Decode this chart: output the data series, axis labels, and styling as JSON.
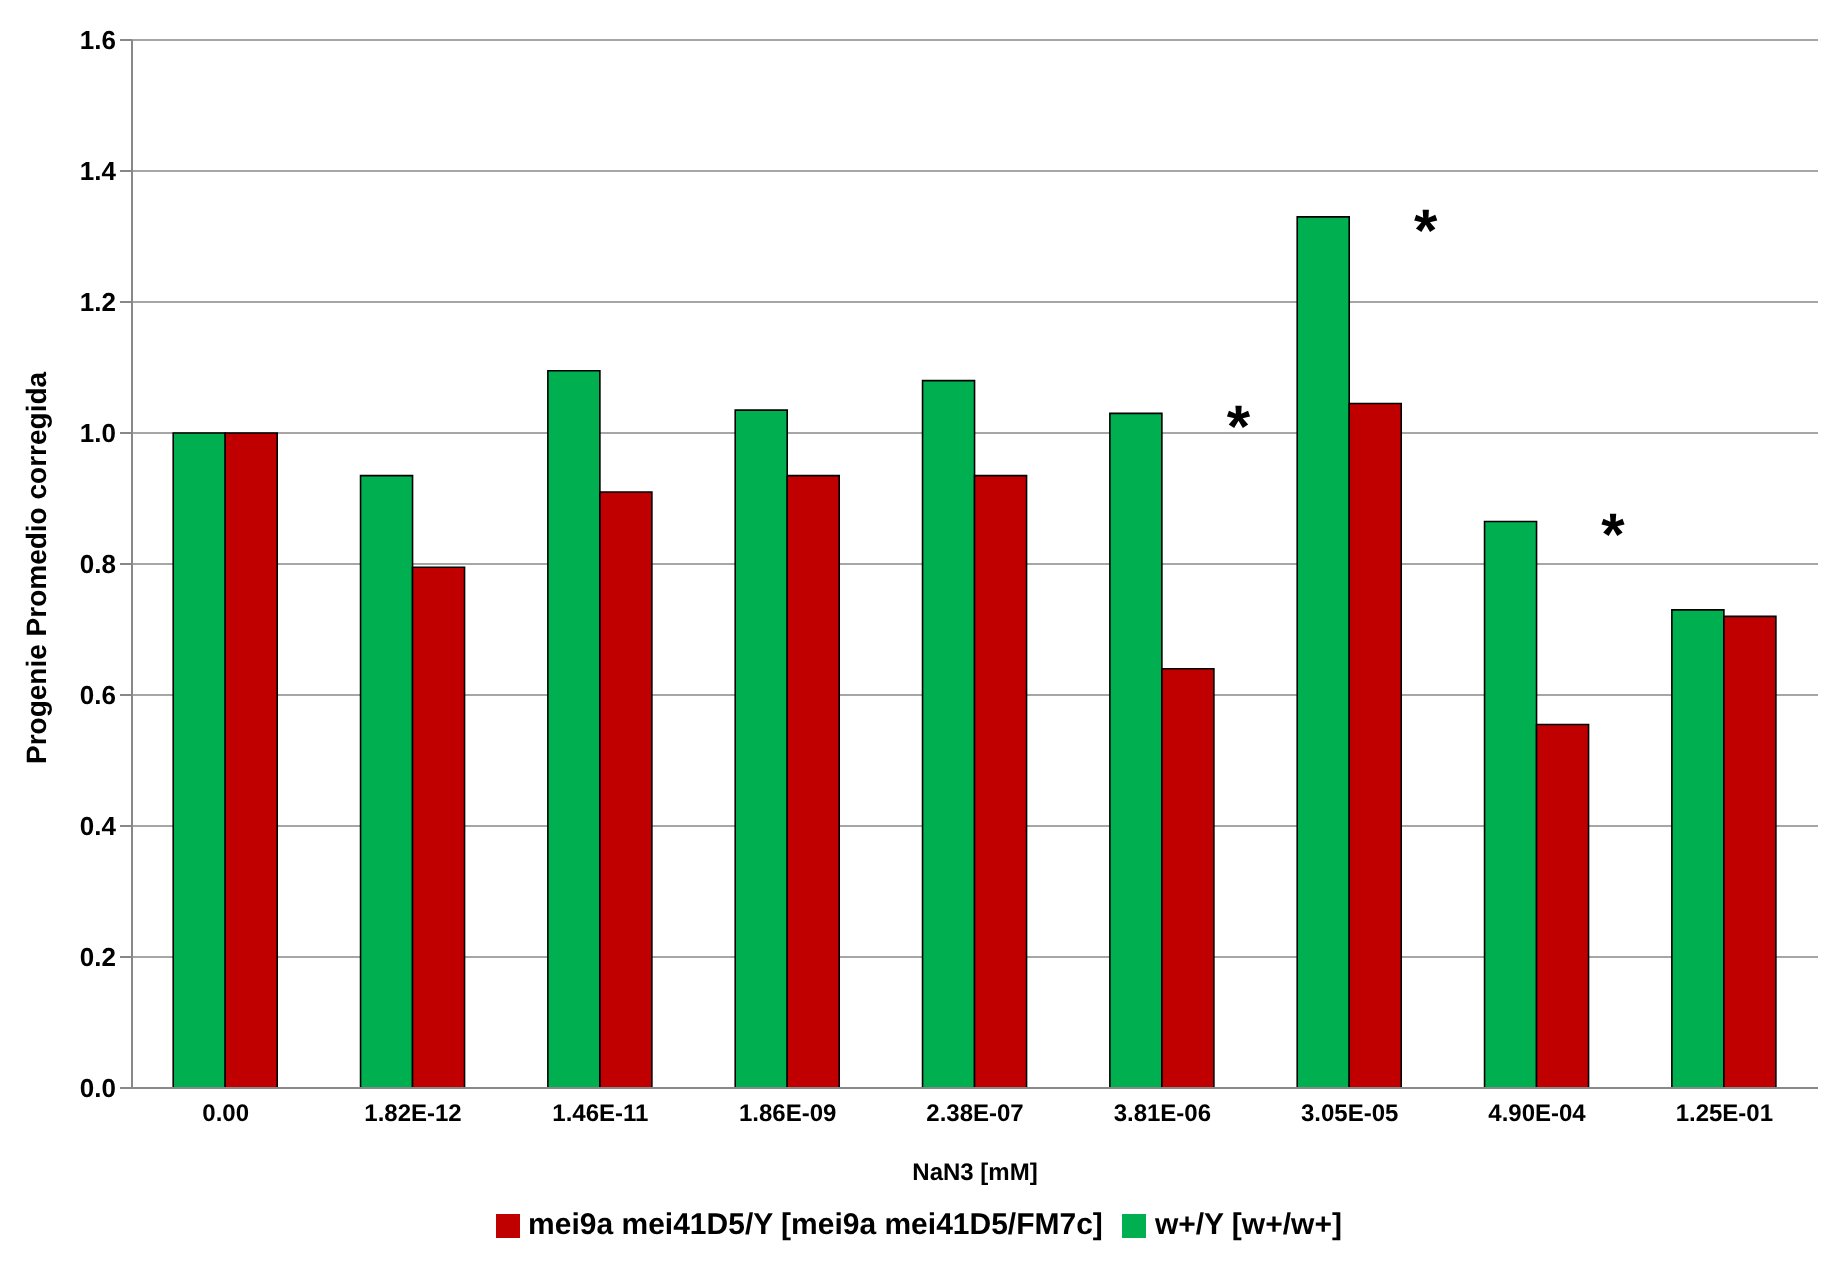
{
  "chart_data": {
    "type": "bar",
    "xlabel": "NaN3 [mM]",
    "ylabel": "Progenie Promedio corregida",
    "categories": [
      "0.00",
      "1.82E-12",
      "1.46E-11",
      "1.86E-09",
      "2.38E-07",
      "3.81E-06",
      "3.05E-05",
      "4.90E-04",
      "1.25E-01"
    ],
    "series": [
      {
        "name": "w+/Y [w+/w+]",
        "color": "#00b050",
        "values": [
          1.0,
          0.935,
          1.095,
          1.035,
          1.08,
          1.03,
          1.33,
          0.865,
          0.73
        ]
      },
      {
        "name": "mei9a mei41D5/Y [mei9a mei41D5/FM7c]",
        "color": "#c00000",
        "values": [
          1.0,
          0.795,
          0.91,
          0.935,
          0.935,
          0.64,
          1.045,
          0.555,
          0.72
        ]
      }
    ],
    "ylim": [
      0,
      1.6
    ],
    "yticks": [
      {
        "value": 0,
        "label": "0.0"
      },
      {
        "value": 0.2,
        "label": "0.2"
      },
      {
        "value": 0.4,
        "label": "0.4"
      },
      {
        "value": 0.6,
        "label": "0.6"
      },
      {
        "value": 0.8,
        "label": "0.8"
      },
      {
        "value": 1,
        "label": "1.0"
      },
      {
        "value": 1.2,
        "label": "1.2"
      },
      {
        "value": 1.4,
        "label": "1.4"
      },
      {
        "value": 1.6,
        "label": "1.6"
      }
    ],
    "grid": "y",
    "legend": "bottom",
    "annotations": [
      {
        "text": "*",
        "x": "3.81E-06",
        "y": 1.03
      },
      {
        "text": "*",
        "x": "3.05E-05",
        "y": 1.33
      },
      {
        "text": "*",
        "x": "4.90E-04",
        "y": 0.865
      }
    ]
  }
}
